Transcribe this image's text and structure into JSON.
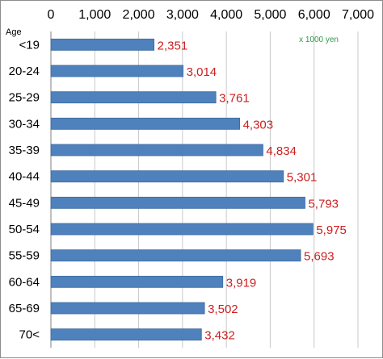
{
  "chart_data": {
    "type": "bar",
    "orientation": "horizontal",
    "ylabel": "Age",
    "unit_note": "x 1000 yen",
    "categories": [
      "<19",
      "20-24",
      "25-29",
      "30-34",
      "35-39",
      "40-44",
      "45-49",
      "50-54",
      "55-59",
      "60-64",
      "65-69",
      "70<"
    ],
    "values": [
      2351,
      3014,
      3761,
      4303,
      4834,
      5301,
      5793,
      5975,
      5693,
      3919,
      3502,
      3432
    ],
    "value_labels": [
      "2,351",
      "3,014",
      "3,761",
      "4,303",
      "4,834",
      "5,301",
      "5,793",
      "5,975",
      "5,693",
      "3,919",
      "3,502",
      "3,432"
    ],
    "xlim": [
      0,
      7000
    ],
    "x_ticks": [
      0,
      1000,
      2000,
      3000,
      4000,
      5000,
      6000,
      7000
    ],
    "x_tick_labels": [
      "0",
      "1,000",
      "2,000",
      "3,000",
      "4,000",
      "5,000",
      "6,000",
      "7,000"
    ],
    "x_axis_position": "top",
    "grid": true,
    "legend": "none",
    "colors": {
      "bar": "#4f81bd",
      "bar_edge": "#3c6a9f",
      "data_label": "#cc1f1f",
      "unit_note": "#2e9a4a",
      "grid": "#c8c8c8"
    }
  }
}
